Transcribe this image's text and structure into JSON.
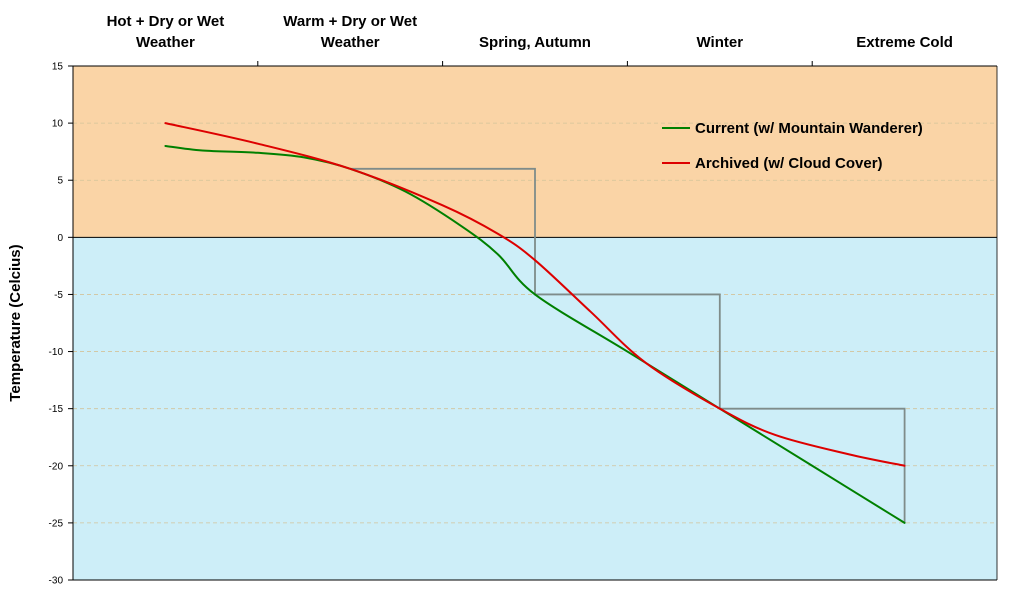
{
  "chart_data": {
    "type": "line",
    "title": "",
    "ylabel": "Temperature (Celcius)",
    "ylim": [
      -30,
      15
    ],
    "yticks": [
      15,
      10,
      5,
      0,
      -5,
      -10,
      -15,
      -20,
      -25,
      -30
    ],
    "grid": true,
    "legend_position": "top-right",
    "categories": [
      {
        "lines": [
          "Hot + Dry or Wet",
          "Weather"
        ]
      },
      {
        "lines": [
          "Warm + Dry or Wet",
          "Weather"
        ]
      },
      {
        "lines": [
          "Spring, Autumn"
        ]
      },
      {
        "lines": [
          "Winter"
        ]
      },
      {
        "lines": [
          "Extreme Cold"
        ]
      }
    ],
    "bands": [
      {
        "from": 0,
        "to": 15,
        "color": "#fad4a6"
      },
      {
        "from": -30,
        "to": 0,
        "color": "#cdeef8"
      }
    ],
    "threshold_step": {
      "color": "#7f8c8a",
      "points": [
        [
          1,
          6
        ],
        [
          2,
          6
        ],
        [
          2,
          -5
        ],
        [
          3,
          -5
        ],
        [
          3,
          -15
        ],
        [
          4,
          -15
        ],
        [
          4,
          -25
        ]
      ]
    },
    "series": [
      {
        "name": "Current (w/ Mountain Wanderer)",
        "color": "#008000",
        "points": [
          [
            0,
            8
          ],
          [
            0.2,
            7.6
          ],
          [
            0.5,
            7.4
          ],
          [
            0.75,
            7.0
          ],
          [
            1,
            6
          ],
          [
            1.3,
            4.0
          ],
          [
            1.6,
            1.0
          ],
          [
            1.8,
            -1.5
          ],
          [
            2,
            -5
          ],
          [
            2.5,
            -10
          ],
          [
            3,
            -15
          ],
          [
            3.5,
            -20
          ],
          [
            4,
            -25
          ]
        ]
      },
      {
        "name": "Archived (w/ Cloud Cover)",
        "color": "#dd0000",
        "points": [
          [
            0,
            10
          ],
          [
            0.5,
            8.2
          ],
          [
            1,
            6
          ],
          [
            1.5,
            2.8
          ],
          [
            1.8,
            0.3
          ],
          [
            2,
            -2
          ],
          [
            2.3,
            -6.5
          ],
          [
            2.6,
            -11.0
          ],
          [
            3,
            -15
          ],
          [
            3.3,
            -17.3
          ],
          [
            3.7,
            -19.0
          ],
          [
            4,
            -20
          ]
        ]
      }
    ]
  }
}
